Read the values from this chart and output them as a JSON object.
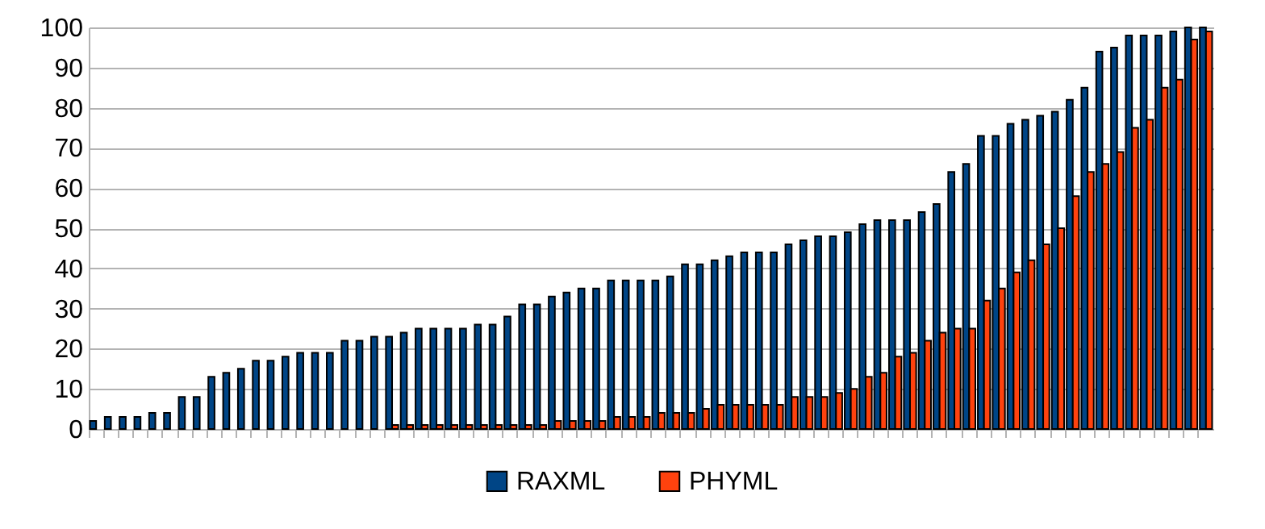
{
  "chart_data": {
    "type": "bar",
    "categories": [
      null,
      null,
      null,
      null,
      null,
      null,
      null,
      null,
      null,
      null,
      null,
      null,
      null,
      null,
      null,
      null,
      null,
      null,
      null,
      null,
      null,
      null,
      null,
      null,
      null,
      null,
      null,
      null,
      null,
      null,
      null,
      null,
      null,
      null,
      null,
      null,
      null,
      null,
      null,
      null,
      null,
      null,
      null,
      null,
      null,
      null,
      null,
      null,
      null,
      null,
      null,
      null,
      null,
      null,
      null,
      null,
      null,
      null,
      null,
      null,
      null,
      null,
      null,
      null,
      null,
      null,
      null,
      null,
      null,
      null,
      null,
      null,
      null,
      null,
      null,
      null
    ],
    "series": [
      {
        "name": "RAXML",
        "color": "#004586",
        "values": [
          2,
          3,
          3,
          3,
          4,
          4,
          8,
          8,
          13,
          14,
          15,
          17,
          17,
          18,
          19,
          19,
          19,
          22,
          22,
          23,
          23,
          24,
          25,
          25,
          25,
          25,
          26,
          26,
          28,
          31,
          31,
          33,
          34,
          35,
          35,
          37,
          37,
          37,
          37,
          38,
          41,
          41,
          42,
          43,
          44,
          44,
          44,
          46,
          47,
          48,
          48,
          49,
          51,
          52,
          52,
          52,
          54,
          56,
          64,
          66,
          73,
          73,
          76,
          77,
          78,
          79,
          82,
          85,
          94,
          95,
          98,
          98,
          98,
          99,
          100,
          100
        ]
      },
      {
        "name": "PHYML",
        "color": "#ff420e",
        "values": [
          null,
          null,
          null,
          null,
          null,
          null,
          null,
          null,
          null,
          null,
          null,
          null,
          null,
          null,
          null,
          null,
          null,
          null,
          null,
          null,
          1,
          1,
          1,
          1,
          1,
          1,
          1,
          1,
          1,
          1,
          1,
          2,
          2,
          2,
          2,
          3,
          3,
          3,
          4,
          4,
          4,
          5,
          6,
          6,
          6,
          6,
          6,
          8,
          8,
          8,
          9,
          10,
          13,
          14,
          18,
          19,
          22,
          24,
          25,
          25,
          32,
          35,
          39,
          42,
          46,
          50,
          58,
          64,
          66,
          69,
          75,
          77,
          85,
          87,
          97,
          99
        ]
      }
    ],
    "ylim": [
      0,
      100
    ],
    "yticks": [
      0,
      10,
      20,
      30,
      40,
      50,
      60,
      70,
      80,
      90,
      100
    ],
    "grid": "y",
    "legend": "bottom"
  }
}
